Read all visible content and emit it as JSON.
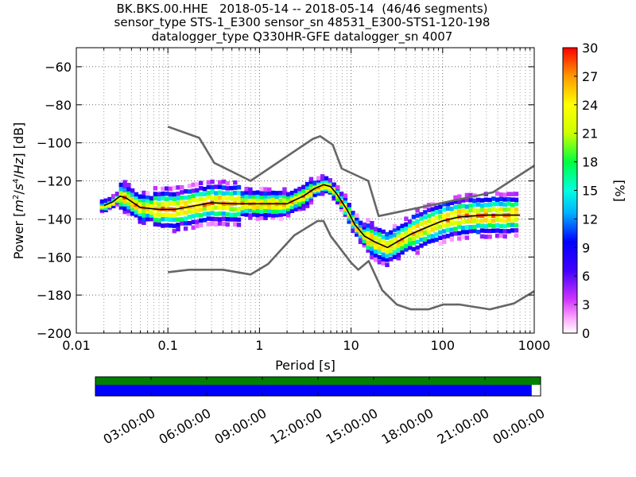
{
  "title_lines": [
    "BK.BKS.00.HHE   2018-05-14 -- 2018-05-14  (46/46 segments)",
    "sensor_type STS-1_E300 sensor_sn 48531_E300-STS1-120-198",
    "datalogger_type Q330HR-GFE datalogger_sn 4007"
  ],
  "colors": {
    "noise_model": "#666666",
    "mode_line": "#000000",
    "mean_line": "#222222",
    "grid": "#555555",
    "coverage_top": "#008000",
    "coverage_data": "#0000ff"
  },
  "chart_data": {
    "type": "heatmap",
    "title": "BK.BKS.00.HHE   2018-05-14 -- 2018-05-14  (46/46 segments)",
    "xlabel": "Period [s]",
    "ylabel": "Power [m²/s⁴/Hz] [dB]",
    "xscale": "log",
    "xlim": [
      0.01,
      1000
    ],
    "ylim": [
      -200,
      -50
    ],
    "xticks": [
      0.01,
      0.1,
      1,
      10,
      100,
      1000
    ],
    "xtick_labels": [
      "0.01",
      "0.1",
      "1",
      "10",
      "100",
      "1000"
    ],
    "yticks": [
      -200,
      -180,
      -160,
      -140,
      -120,
      -100,
      -80,
      -60
    ],
    "ytick_labels": [
      "−200",
      "−180",
      "−160",
      "−140",
      "−120",
      "−100",
      "−80",
      "−60"
    ],
    "grid": true,
    "colorbar": {
      "label": "[%]",
      "range": [
        0,
        30
      ],
      "ticks": [
        "0",
        "3",
        "6",
        "9",
        "12",
        "15",
        "18",
        "21",
        "24",
        "27",
        "30"
      ]
    },
    "new_high_noise_model": [
      [
        0.1,
        -91.5
      ],
      [
        0.22,
        -97.4
      ],
      [
        0.32,
        -110.5
      ],
      [
        0.8,
        -120
      ],
      [
        3.8,
        -98
      ],
      [
        4.6,
        -96.5
      ],
      [
        6.3,
        -101
      ],
      [
        7.9,
        -113.5
      ],
      [
        15.4,
        -120
      ],
      [
        20,
        -138.5
      ],
      [
        354.8,
        -126
      ],
      [
        1000,
        -112
      ]
    ],
    "new_low_noise_model": [
      [
        0.1,
        -168
      ],
      [
        0.17,
        -166.7
      ],
      [
        0.4,
        -166.7
      ],
      [
        0.8,
        -169.2
      ],
      [
        1.24,
        -163.7
      ],
      [
        2.4,
        -148.6
      ],
      [
        4.3,
        -141.1
      ],
      [
        5.0,
        -141.1
      ],
      [
        6.0,
        -149
      ],
      [
        10,
        -163
      ],
      [
        12,
        -166.7
      ],
      [
        15.6,
        -162.1
      ],
      [
        21.9,
        -177.5
      ],
      [
        31.6,
        -185
      ],
      [
        45,
        -187.5
      ],
      [
        70,
        -187.5
      ],
      [
        101,
        -185
      ],
      [
        154,
        -185
      ],
      [
        328,
        -187.5
      ],
      [
        600,
        -184.4
      ],
      [
        1000,
        -178
      ]
    ],
    "mode": [
      [
        0.02,
        -133
      ],
      [
        0.025,
        -131
      ],
      [
        0.03,
        -128
      ],
      [
        0.035,
        -129
      ],
      [
        0.05,
        -134
      ],
      [
        0.08,
        -135
      ],
      [
        0.12,
        -135
      ],
      [
        0.2,
        -133
      ],
      [
        0.3,
        -131.5
      ],
      [
        0.5,
        -132
      ],
      [
        0.8,
        -132
      ],
      [
        1.2,
        -132
      ],
      [
        2,
        -132
      ],
      [
        3,
        -128
      ],
      [
        4,
        -124
      ],
      [
        5,
        -122
      ],
      [
        6,
        -123
      ],
      [
        7,
        -127
      ],
      [
        9,
        -135
      ],
      [
        11,
        -143
      ],
      [
        14,
        -149
      ],
      [
        18,
        -152
      ],
      [
        25,
        -155
      ],
      [
        32,
        -152
      ],
      [
        45,
        -148
      ],
      [
        70,
        -144
      ],
      [
        100,
        -141
      ],
      [
        150,
        -139
      ],
      [
        200,
        -138.5
      ],
      [
        300,
        -138
      ],
      [
        600,
        -138
      ],
      [
        700,
        -138
      ]
    ],
    "coverage": {
      "time_labels": [
        "03:00:00",
        "06:00:00",
        "09:00:00",
        "12:00:00",
        "15:00:00",
        "18:00:00",
        "21:00:00",
        "00:00:00"
      ],
      "data_fraction": 0.98
    }
  }
}
